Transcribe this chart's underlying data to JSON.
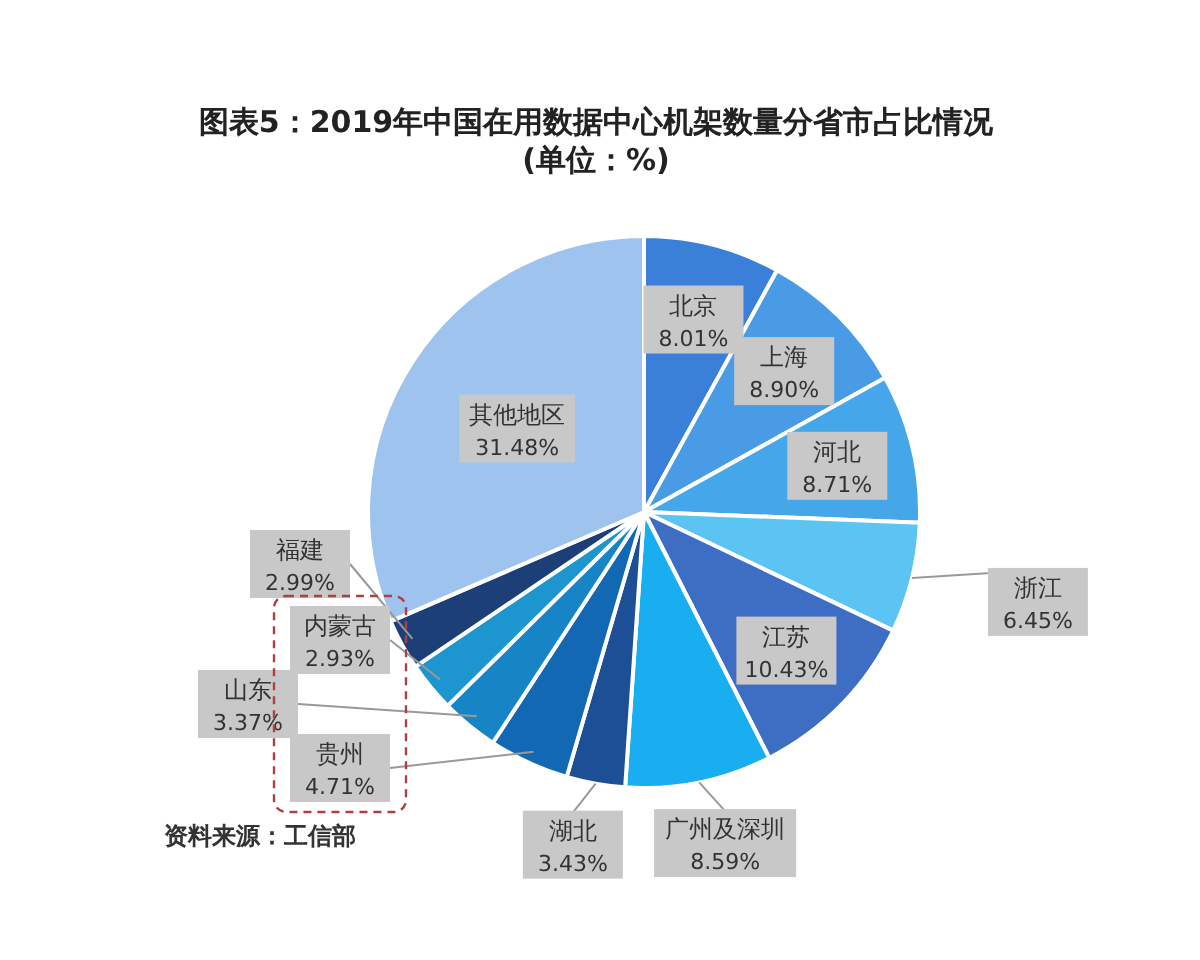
{
  "chart_data": {
    "type": "pie",
    "title": "图表5：2019年中国在用数据中心机架数量分省市占比情况",
    "subtitle": "(单位：%)",
    "categories": [
      "北京",
      "上海",
      "河北",
      "浙江",
      "江苏",
      "广州及深圳",
      "湖北",
      "贵州",
      "山东",
      "内蒙古",
      "福建",
      "其他地区"
    ],
    "values": [
      8.01,
      8.9,
      8.71,
      6.45,
      10.43,
      8.59,
      3.43,
      4.71,
      3.37,
      2.93,
      2.99,
      31.48
    ],
    "value_labels": [
      "8.01%",
      "8.90%",
      "8.71%",
      "6.45%",
      "10.43%",
      "8.59%",
      "3.43%",
      "4.71%",
      "3.37%",
      "2.93%",
      "2.99%",
      "31.48%"
    ],
    "colors": [
      "#3a7fd8",
      "#4a9be6",
      "#46a6ea",
      "#5bc4f2",
      "#3d6ec4",
      "#19aef0",
      "#1c4f96",
      "#1268b3",
      "#1784c6",
      "#1d96cf",
      "#1c3f78",
      "#9ec3ee"
    ],
    "annotations": [
      "资料来源：工信部"
    ]
  }
}
